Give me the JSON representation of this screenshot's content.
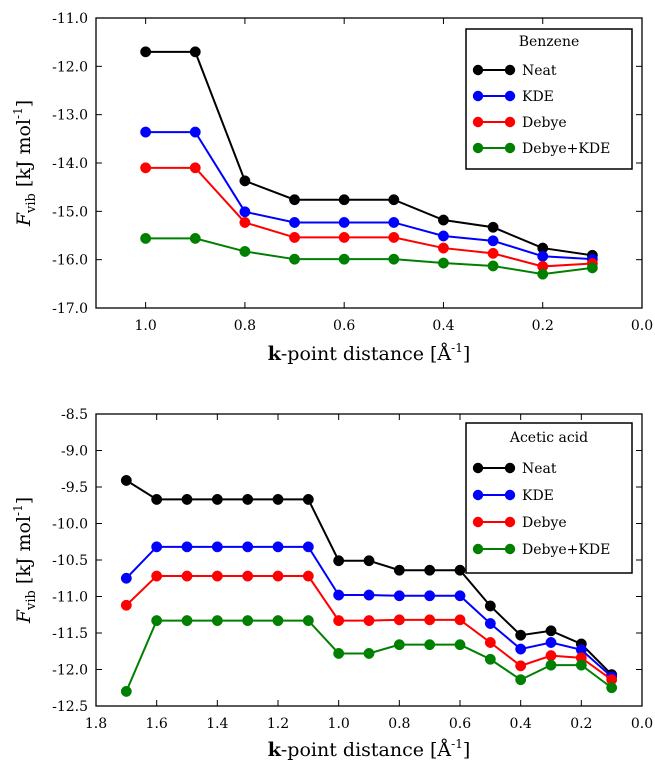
{
  "chart_data": [
    {
      "type": "line",
      "legend_title": "Benzene",
      "legend_position": "top-right",
      "xlabel": "k-point distance [Å⁻¹]",
      "xlabel_parts": {
        "bold": "k",
        "rest": "-point distance [Å",
        "sup": "-1",
        "close": "]"
      },
      "ylabel_parts": {
        "italic": "F",
        "sub": "vib",
        "rest": " [kJ mol",
        "sup": "-1",
        "close": "]"
      },
      "xlim": [
        1.1,
        0.0
      ],
      "ylim": [
        -17.0,
        -11.0
      ],
      "x_ticks": [
        1.0,
        0.8,
        0.6,
        0.4,
        0.2,
        0.0
      ],
      "x_tick_labels": [
        "1.0",
        "0.8",
        "0.6",
        "0.4",
        "0.2",
        "0.0"
      ],
      "y_ticks": [
        -11,
        -12,
        -13,
        -14,
        -15,
        -16,
        -17
      ],
      "y_tick_labels": [
        "-11.0",
        "-12.0",
        "-13.0",
        "-14.0",
        "-15.0",
        "-16.0",
        "-17.0"
      ],
      "x": [
        1.0,
        0.9,
        0.8,
        0.7,
        0.6,
        0.5,
        0.4,
        0.3,
        0.2,
        0.1
      ],
      "series": [
        {
          "name": "Neat",
          "color": "#000000",
          "values": [
            -11.7,
            -11.7,
            -14.37,
            -14.76,
            -14.76,
            -14.76,
            -15.18,
            -15.33,
            -15.76,
            -15.91
          ]
        },
        {
          "name": "KDE",
          "color": "#0000ff",
          "values": [
            -13.36,
            -13.36,
            -15.01,
            -15.23,
            -15.23,
            -15.23,
            -15.51,
            -15.61,
            -15.93,
            -15.99
          ]
        },
        {
          "name": "Debye",
          "color": "#ff0000",
          "values": [
            -14.1,
            -14.1,
            -15.23,
            -15.54,
            -15.54,
            -15.54,
            -15.76,
            -15.87,
            -16.14,
            -16.08
          ]
        },
        {
          "name": "Debye+KDE",
          "color": "#008000",
          "values": [
            -15.56,
            -15.56,
            -15.83,
            -15.99,
            -15.99,
            -15.99,
            -16.07,
            -16.13,
            -16.3,
            -16.17
          ]
        }
      ]
    },
    {
      "type": "line",
      "legend_title": "Acetic acid",
      "legend_position": "top-right",
      "xlabel": "k-point distance [Å⁻¹]",
      "xlabel_parts": {
        "bold": "k",
        "rest": "-point distance [Å",
        "sup": "-1",
        "close": "]"
      },
      "ylabel_parts": {
        "italic": "F",
        "sub": "vib",
        "rest": " [kJ mol",
        "sup": "-1",
        "close": "]"
      },
      "xlim": [
        1.8,
        0.0
      ],
      "ylim": [
        -12.5,
        -8.5
      ],
      "x_ticks": [
        1.8,
        1.6,
        1.4,
        1.2,
        1.0,
        0.8,
        0.6,
        0.4,
        0.2,
        0.0
      ],
      "x_tick_labels": [
        "1.8",
        "1.6",
        "1.4",
        "1.2",
        "1.0",
        "0.8",
        "0.6",
        "0.4",
        "0.2",
        "0.0"
      ],
      "y_ticks": [
        -8.5,
        -9.0,
        -9.5,
        -10.0,
        -10.5,
        -11.0,
        -11.5,
        -12.0,
        -12.5
      ],
      "y_tick_labels": [
        "-8.5",
        "-9.0",
        "-9.5",
        "-10.0",
        "-10.5",
        "-11.0",
        "-11.5",
        "-12.0",
        "-12.5"
      ],
      "x": [
        1.7,
        1.6,
        1.5,
        1.4,
        1.3,
        1.2,
        1.1,
        1.0,
        0.9,
        0.8,
        0.7,
        0.6,
        0.5,
        0.4,
        0.3,
        0.2,
        0.1
      ],
      "series": [
        {
          "name": "Neat",
          "color": "#000000",
          "values": [
            -9.41,
            -9.67,
            -9.67,
            -9.67,
            -9.67,
            -9.67,
            -9.67,
            -10.51,
            -10.51,
            -10.64,
            -10.64,
            -10.64,
            -11.13,
            -11.53,
            -11.47,
            -11.65,
            -12.07
          ]
        },
        {
          "name": "KDE",
          "color": "#0000ff",
          "values": [
            -10.75,
            -10.32,
            -10.32,
            -10.32,
            -10.32,
            -10.32,
            -10.32,
            -10.98,
            -10.98,
            -10.99,
            -10.99,
            -10.99,
            -11.37,
            -11.72,
            -11.63,
            -11.73,
            -12.1
          ]
        },
        {
          "name": "Debye",
          "color": "#ff0000",
          "values": [
            -11.12,
            -10.72,
            -10.72,
            -10.72,
            -10.72,
            -10.72,
            -10.72,
            -11.33,
            -11.33,
            -11.32,
            -11.32,
            -11.32,
            -11.63,
            -11.95,
            -11.81,
            -11.84,
            -12.14
          ]
        },
        {
          "name": "Debye+KDE",
          "color": "#008000",
          "values": [
            -12.3,
            -11.33,
            -11.33,
            -11.33,
            -11.33,
            -11.33,
            -11.33,
            -11.78,
            -11.78,
            -11.66,
            -11.66,
            -11.66,
            -11.86,
            -12.14,
            -11.94,
            -11.94,
            -12.25
          ]
        }
      ]
    }
  ]
}
